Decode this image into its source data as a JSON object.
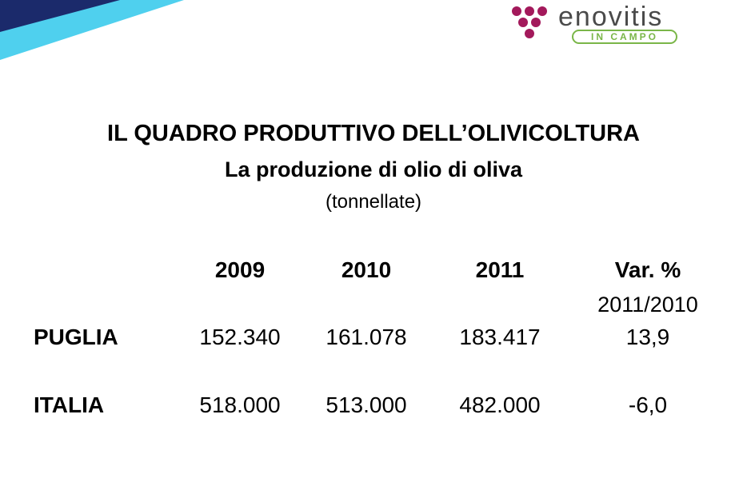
{
  "logo": {
    "name": "enovitis",
    "tagline": "IN CAMPO"
  },
  "header": {
    "title": "IL QUADRO PRODUTTIVO DELL’OLIVICOLTURA",
    "subtitle": "La produzione di olio di oliva",
    "unit": "(tonnellate)"
  },
  "table": {
    "columns": [
      "2009",
      "2010",
      "2011",
      "Var. %"
    ],
    "column_note": "2011/2010",
    "rows": [
      [
        "PUGLIA",
        "152.340",
        "161.078",
        "183.417",
        "13,9"
      ],
      [
        "ITALIA",
        "518.000",
        "513.000",
        "482.000",
        "-6,0"
      ]
    ]
  }
}
